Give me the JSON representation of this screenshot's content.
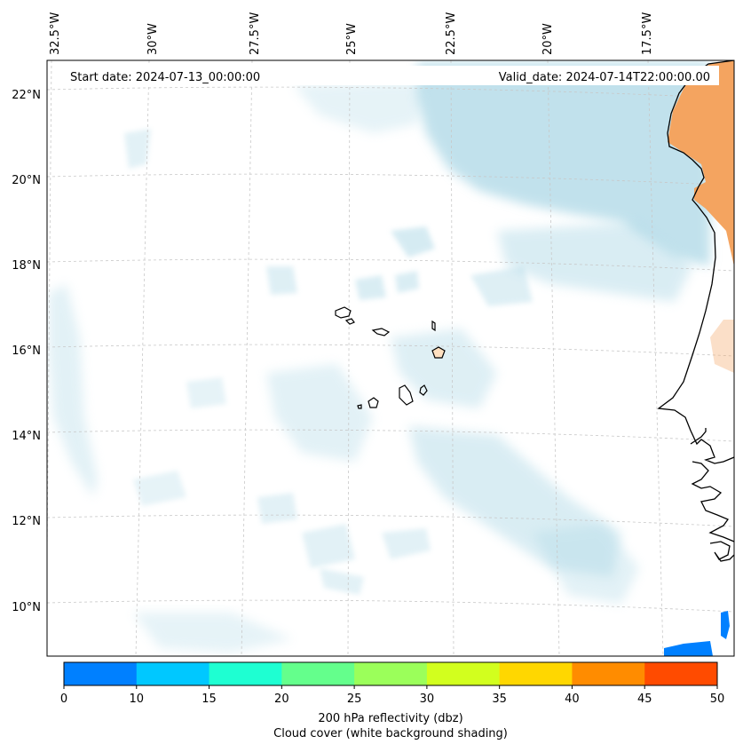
{
  "map": {
    "start_date_label": "Start date: 2024-07-13_00:00:00",
    "valid_date_label": "Valid_date: 2024-07-14T22:00:00.00",
    "lon_labels": [
      "32.5°W",
      "30°W",
      "27.5°W",
      "25°W",
      "22.5°W",
      "20°W",
      "17.5°W"
    ],
    "lat_labels": [
      "22°N",
      "20°N",
      "18°N",
      "16°N",
      "14°N",
      "12°N",
      "10°N"
    ],
    "colors": {
      "cloud": "#add8e6",
      "warm": "#f4a460",
      "coast": "#000000",
      "grid": "#c8c8c8",
      "reflectivity_low": "#0080ff"
    }
  },
  "colorbar": {
    "ticks": [
      "0",
      "10",
      "15",
      "20",
      "25",
      "30",
      "35",
      "40",
      "45",
      "50"
    ],
    "colors": [
      "#0080ff",
      "#00c8ff",
      "#1effd2",
      "#64ff8c",
      "#9bff5a",
      "#d2ff1e",
      "#ffd700",
      "#ff8c00",
      "#ff4b00"
    ],
    "label_line1": "200 hPa reflectivity (dbz)",
    "label_line2": "Cloud cover (white background shading)"
  }
}
